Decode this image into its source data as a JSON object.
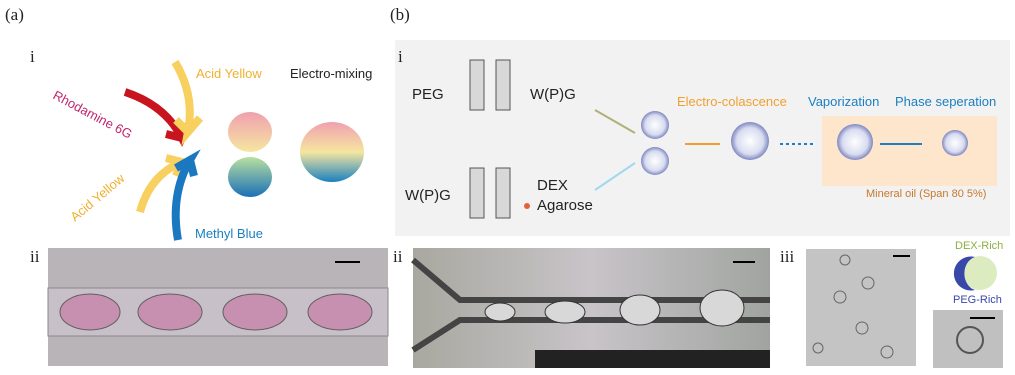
{
  "panel_a": {
    "label": "(a)",
    "sub_i": {
      "label": "i",
      "acid_yellow_top": "Acid Yellow",
      "process": "Electro-mixing",
      "rhodamine": "Rhodamine 6G",
      "acid_yellow_bottom": "Acid Yellow",
      "methyl_blue": "Methyl Blue"
    },
    "sub_ii": {
      "label": "ii"
    }
  },
  "panel_b": {
    "label": "(b)",
    "sub_i": {
      "label": "i",
      "peg": "PEG",
      "wpg_top": "W(P)G",
      "wpg_bottom": "W(P)G",
      "dex": "DEX",
      "agarose": "Agarose",
      "step1": "Electro-colascence",
      "step2": "Vaporization",
      "step3": "Phase seperation",
      "oil": "Mineral oil (Span 80 5%)"
    },
    "sub_ii": {
      "label": "ii"
    },
    "sub_iii": {
      "label": "iii",
      "dex_rich": "DEX-Rich",
      "peg_rich": "PEG-Rich"
    }
  }
}
